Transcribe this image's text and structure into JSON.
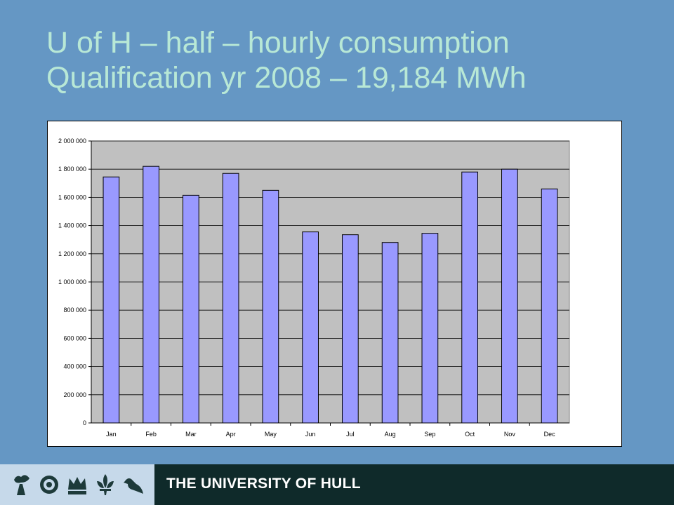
{
  "slide": {
    "title_line1": "U of H – half – hourly consumption",
    "title_line2": "Qualification yr 2008 – 19,184 MWh"
  },
  "footer": {
    "university_name": "THE UNIVERSITY OF HULL",
    "crest_icons": [
      "torch-icon",
      "rose-icon",
      "crown-icon",
      "fleur-de-lis-icon",
      "bird-icon"
    ]
  },
  "colors": {
    "background": "#6597c4",
    "title": "#b8e8d6",
    "plot_area": "#c0c0c0",
    "bar_fill": "#9999ff",
    "footer": "#0f2a2a"
  },
  "chart_data": {
    "type": "bar",
    "categories": [
      "Jan",
      "Feb",
      "Mar",
      "Apr",
      "May",
      "Jun",
      "Jul",
      "Aug",
      "Sep",
      "Oct",
      "Nov",
      "Dec"
    ],
    "values": [
      1745000,
      1820000,
      1615000,
      1770000,
      1650000,
      1355000,
      1335000,
      1280000,
      1345000,
      1780000,
      1800000,
      1660000
    ],
    "ylim": [
      0,
      2000000
    ],
    "yticks": [
      0,
      200000,
      400000,
      600000,
      800000,
      1000000,
      1200000,
      1400000,
      1600000,
      1800000,
      2000000
    ],
    "ytick_labels": [
      "0",
      "200 000",
      "400 000",
      "600 000",
      "800 000",
      "1 000 000",
      "1 200 000",
      "1 400 000",
      "1 600 000",
      "1 800 000",
      "2 000 000"
    ],
    "grid": true,
    "legend": "none"
  }
}
